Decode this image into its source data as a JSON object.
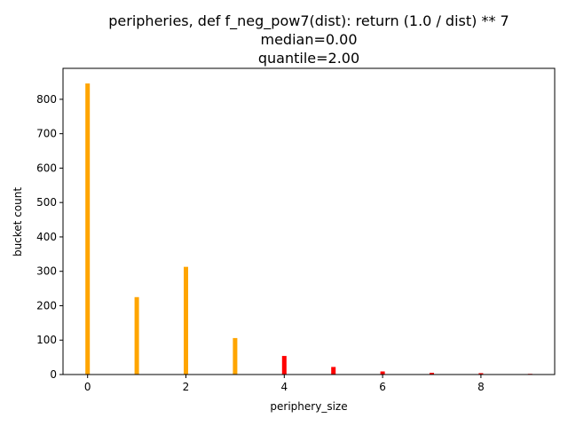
{
  "chart_data": {
    "type": "bar",
    "title": [
      "peripheries, def f_neg_pow7(dist): return (1.0 / dist) ** 7",
      "median=0.00",
      "quantile=2.00"
    ],
    "xlabel": "periphery_size",
    "ylabel": "bucket count",
    "x": [
      0,
      1,
      2,
      3,
      4,
      5,
      6,
      7,
      8,
      9
    ],
    "values": [
      846,
      225,
      313,
      106,
      54,
      22,
      9,
      5,
      4,
      2
    ],
    "bar_colors": [
      "#ffa500",
      "#ffa500",
      "#ffa500",
      "#ffa500",
      "#ff0000",
      "#ff0000",
      "#ff0000",
      "#ff0000",
      "#ff0000",
      "#ff0000"
    ],
    "xlim": [
      -0.5,
      9.5
    ],
    "ylim": [
      0,
      890
    ],
    "xticks": [
      0,
      2,
      4,
      6,
      8
    ],
    "yticks": [
      0,
      100,
      200,
      300,
      400,
      500,
      600,
      700,
      800
    ],
    "grid": false
  }
}
